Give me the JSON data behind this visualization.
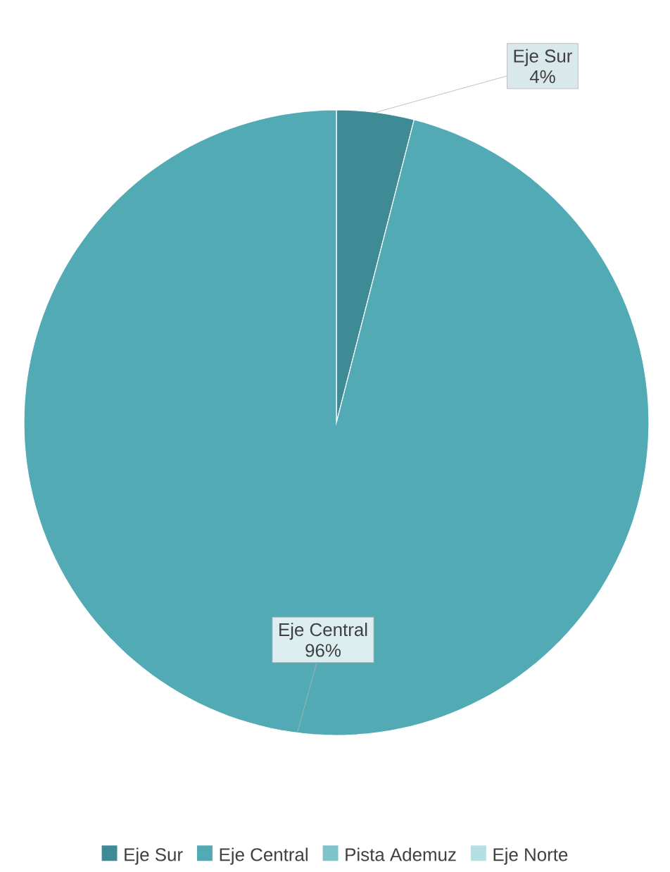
{
  "chart_data": {
    "type": "pie",
    "categories": [
      "Eje Sur",
      "Eje Central",
      "Pista Ademuz",
      "Eje Norte"
    ],
    "values": [
      4,
      96,
      0,
      0
    ],
    "colors": [
      "#3f8b95",
      "#52aab5",
      "#7dc3cc",
      "#b5dfe4"
    ],
    "value_labels": [
      "4%",
      "96%",
      null,
      null
    ],
    "legend": "bottom"
  }
}
